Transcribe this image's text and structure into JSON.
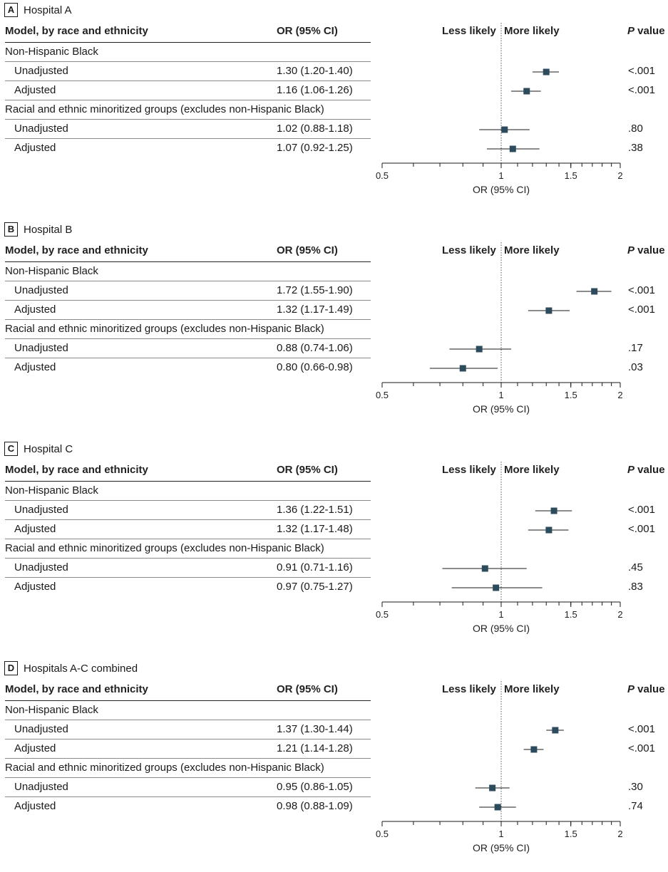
{
  "headers": {
    "model": "Model, by race and ethnicity",
    "or": "OR (95% CI)",
    "less": "Less likely",
    "more": "More likely",
    "p_italic": "P",
    "p_rest": " value"
  },
  "groups": {
    "black": "Non-Hispanic Black",
    "other": "Racial and ethnic minoritized groups (excludes non-Hispanic Black)"
  },
  "rows": {
    "unadjusted": "Unadjusted",
    "adjusted": "Adjusted"
  },
  "colors": {
    "marker": "#2c4b5c",
    "line": "#1a1a1a"
  },
  "panels": [
    {
      "label": "A",
      "title": "Hospital A",
      "or_text": [
        "1.30 (1.20-1.40)",
        "1.16 (1.06-1.26)",
        "1.02 (0.88-1.18)",
        "1.07 (0.92-1.25)"
      ],
      "p": [
        "<.001",
        "<.001",
        ".80",
        ".38"
      ]
    },
    {
      "label": "B",
      "title": "Hospital B",
      "or_text": [
        "1.72 (1.55-1.90)",
        "1.32 (1.17-1.49)",
        "0.88 (0.74-1.06)",
        "0.80 (0.66-0.98)"
      ],
      "p": [
        "<.001",
        "<.001",
        ".17",
        ".03"
      ]
    },
    {
      "label": "C",
      "title": "Hospital C",
      "or_text": [
        "1.36 (1.22-1.51)",
        "1.32 (1.17-1.48)",
        "0.91 (0.71-1.16)",
        "0.97 (0.75-1.27)"
      ],
      "p": [
        "<.001",
        "<.001",
        ".45",
        ".83"
      ]
    },
    {
      "label": "D",
      "title": "Hospitals A-C combined",
      "or_text": [
        "1.37 (1.30-1.44)",
        "1.21 (1.14-1.28)",
        "0.95 (0.86-1.05)",
        "0.98 (0.88-1.09)"
      ],
      "p": [
        "<.001",
        "<.001",
        ".30",
        ".74"
      ]
    }
  ],
  "chart_data": [
    {
      "type": "forest",
      "title": "Hospital A",
      "xlabel": "OR (95% CI)",
      "scale": "log",
      "xlim": [
        0.5,
        2
      ],
      "xticks": [
        "0.5",
        "1",
        "1.5",
        "2"
      ],
      "reference": 1,
      "categories": [
        "Non-Hispanic Black Unadjusted",
        "Non-Hispanic Black Adjusted",
        "Minoritized Unadjusted",
        "Minoritized Adjusted"
      ],
      "estimates": [
        1.3,
        1.16,
        1.02,
        1.07
      ],
      "lower": [
        1.2,
        1.06,
        0.88,
        0.92
      ],
      "upper": [
        1.4,
        1.26,
        1.18,
        1.25
      ]
    },
    {
      "type": "forest",
      "title": "Hospital B",
      "xlabel": "OR (95% CI)",
      "scale": "log",
      "xlim": [
        0.5,
        2
      ],
      "xticks": [
        "0.5",
        "1",
        "1.5",
        "2"
      ],
      "reference": 1,
      "categories": [
        "Non-Hispanic Black Unadjusted",
        "Non-Hispanic Black Adjusted",
        "Minoritized Unadjusted",
        "Minoritized Adjusted"
      ],
      "estimates": [
        1.72,
        1.32,
        0.88,
        0.8
      ],
      "lower": [
        1.55,
        1.17,
        0.74,
        0.66
      ],
      "upper": [
        1.9,
        1.49,
        1.06,
        0.98
      ]
    },
    {
      "type": "forest",
      "title": "Hospital C",
      "xlabel": "OR (95% CI)",
      "scale": "log",
      "xlim": [
        0.5,
        2
      ],
      "xticks": [
        "0.5",
        "1",
        "1.5",
        "2"
      ],
      "reference": 1,
      "categories": [
        "Non-Hispanic Black Unadjusted",
        "Non-Hispanic Black Adjusted",
        "Minoritized Unadjusted",
        "Minoritized Adjusted"
      ],
      "estimates": [
        1.36,
        1.32,
        0.91,
        0.97
      ],
      "lower": [
        1.22,
        1.17,
        0.71,
        0.75
      ],
      "upper": [
        1.51,
        1.48,
        1.16,
        1.27
      ]
    },
    {
      "type": "forest",
      "title": "Hospitals A-C combined",
      "xlabel": "OR (95% CI)",
      "scale": "log",
      "xlim": [
        0.5,
        2
      ],
      "xticks": [
        "0.5",
        "1",
        "1.5",
        "2"
      ],
      "reference": 1,
      "categories": [
        "Non-Hispanic Black Unadjusted",
        "Non-Hispanic Black Adjusted",
        "Minoritized Unadjusted",
        "Minoritized Adjusted"
      ],
      "estimates": [
        1.37,
        1.21,
        0.95,
        0.98
      ],
      "lower": [
        1.3,
        1.14,
        0.86,
        0.88
      ],
      "upper": [
        1.44,
        1.28,
        1.05,
        1.09
      ]
    }
  ]
}
